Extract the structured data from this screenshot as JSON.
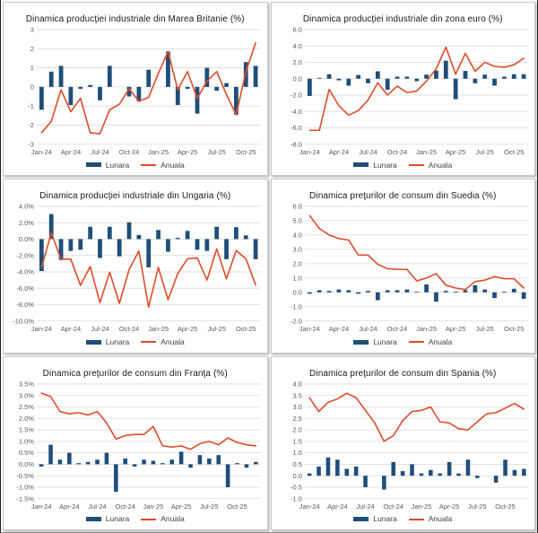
{
  "colors": {
    "bar": "#1f4e79",
    "line": "#df4b2a",
    "grid": "#d9d9d9",
    "tick_text": "#595959",
    "title_text": "#1a1a1a",
    "legend_text": "#404040",
    "panel_border": "#c9c9c9",
    "background": "#ffffff"
  },
  "legend": {
    "lunara": "Lunara",
    "anuala": "Anuala"
  },
  "chart_data": [
    {
      "type": "bar+line",
      "title": "Dinamica producţiei industriale din Marea Britanie (%)",
      "ylim": [
        -3,
        3
      ],
      "grid": true,
      "legend_position": "bottom",
      "months": [
        "Jan-24",
        "Feb-24",
        "Mar-24",
        "Apr-24",
        "May-24",
        "Jun-24",
        "Jul-24",
        "Aug-24",
        "Sep-24",
        "Oct-24",
        "Nov-24",
        "Dec-24",
        "Jan-25",
        "Feb-25",
        "Mar-25",
        "Apr-25",
        "May-25",
        "Jun-25",
        "Jul-25",
        "Aug-25",
        "Sep-25",
        "Oct-25",
        "Nov-25"
      ],
      "x_ticks": [
        {
          "i": 0,
          "label": "Jan-24"
        },
        {
          "i": 3,
          "label": "Apr-24"
        },
        {
          "i": 6,
          "label": "Jul-24"
        },
        {
          "i": 9,
          "label": "Oct-24"
        },
        {
          "i": 12,
          "label": "Jan-25"
        },
        {
          "i": 15,
          "label": "Apr-25"
        },
        {
          "i": 18,
          "label": "Jul-25"
        },
        {
          "i": 21,
          "label": "Oct-25"
        }
      ],
      "y_ticks": [
        {
          "v": 3,
          "label": "3"
        },
        {
          "v": 2,
          "label": "2"
        },
        {
          "v": 1,
          "label": "1"
        },
        {
          "v": 0,
          "label": "0"
        },
        {
          "v": -1,
          "label": "-1"
        },
        {
          "v": -2,
          "label": "-2"
        },
        {
          "v": -3,
          "label": "-3"
        }
      ],
      "series": [
        {
          "name": "Lunara",
          "type": "bar",
          "values": [
            -1.2,
            0.8,
            1.1,
            -0.95,
            -0.1,
            0.1,
            -0.7,
            1.1,
            0,
            -0.5,
            -0.75,
            0.9,
            0,
            1.85,
            -0.95,
            -0.1,
            -1.4,
            1.0,
            -0.2,
            0.2,
            -1.45,
            1.3,
            1.1
          ]
        },
        {
          "name": "Anuala",
          "type": "line",
          "values": [
            -2.4,
            -1.8,
            -0.15,
            -1.3,
            -0.6,
            -2.4,
            -2.45,
            -1.2,
            -0.9,
            -0.1,
            -0.75,
            -0.55,
            0.7,
            1.85,
            -0.15,
            0.8,
            -0.6,
            0.3,
            0.8,
            -0.4,
            -1.45,
            0.8,
            2.3
          ]
        }
      ]
    },
    {
      "type": "bar+line",
      "title": "Dinamica producţiei industriale din zona euro (%)",
      "ylim": [
        -8,
        6
      ],
      "grid": true,
      "legend_position": "bottom",
      "months": [
        "Jan-24",
        "Feb-24",
        "Mar-24",
        "Apr-24",
        "May-24",
        "Jun-24",
        "Jul-24",
        "Aug-24",
        "Sep-24",
        "Oct-24",
        "Nov-24",
        "Dec-24",
        "Jan-25",
        "Feb-25",
        "Mar-25",
        "Apr-25",
        "May-25",
        "Jun-25",
        "Jul-25",
        "Aug-25",
        "Sep-25",
        "Oct-25",
        "Nov-25"
      ],
      "x_ticks": [
        {
          "i": 0,
          "label": "Jan-24"
        },
        {
          "i": 3,
          "label": "Apr-24"
        },
        {
          "i": 6,
          "label": "Jul-24"
        },
        {
          "i": 9,
          "label": "Oct-24"
        },
        {
          "i": 12,
          "label": "Jan-25"
        },
        {
          "i": 15,
          "label": "Apr-25"
        },
        {
          "i": 18,
          "label": "Jul-25"
        },
        {
          "i": 21,
          "label": "Oct-25"
        }
      ],
      "y_ticks": [
        {
          "v": 6,
          "label": "6.0"
        },
        {
          "v": 4,
          "label": "4.0"
        },
        {
          "v": 2,
          "label": "2.0"
        },
        {
          "v": 0,
          "label": "0.0"
        },
        {
          "v": -2,
          "label": "-2.0"
        },
        {
          "v": -4,
          "label": "-4.0"
        },
        {
          "v": -6,
          "label": "-6.0"
        },
        {
          "v": -8,
          "label": "-8.0"
        }
      ],
      "series": [
        {
          "name": "Lunara",
          "type": "bar",
          "values": [
            -2.1,
            0.1,
            0.55,
            -0.2,
            -0.85,
            0.45,
            -0.55,
            0.9,
            -1.35,
            0.25,
            0.25,
            -0.3,
            0.5,
            1.0,
            2.2,
            -2.5,
            0.95,
            -0.55,
            0.5,
            -0.85,
            0.25,
            0.55,
            0.55
          ]
        },
        {
          "name": "Anuala",
          "type": "line",
          "values": [
            -6.3,
            -6.3,
            -1.3,
            -3.3,
            -4.45,
            -3.9,
            -2.6,
            -0.5,
            -2.0,
            -0.9,
            -1.7,
            -1.5,
            -0.3,
            1.2,
            3.85,
            0.55,
            3.1,
            0.9,
            2.0,
            1.5,
            1.4,
            1.7,
            2.5
          ]
        }
      ]
    },
    {
      "type": "bar+line",
      "title": "Dinamica producţiei industriale din Ungaria (%)",
      "ylim": [
        -10,
        4
      ],
      "grid": true,
      "legend_position": "bottom",
      "months": [
        "Jan-24",
        "Feb-24",
        "Mar-24",
        "Apr-24",
        "May-24",
        "Jun-24",
        "Jul-24",
        "Aug-24",
        "Sep-24",
        "Oct-24",
        "Nov-24",
        "Dec-24",
        "Jan-25",
        "Feb-25",
        "Mar-25",
        "Apr-25",
        "May-25",
        "Jun-25",
        "Jul-25",
        "Aug-25",
        "Sep-25",
        "Oct-25",
        "Nov-25"
      ],
      "x_ticks": [
        {
          "i": 0,
          "label": "Jan-24"
        },
        {
          "i": 3,
          "label": "Apr-24"
        },
        {
          "i": 6,
          "label": "Jul-24"
        },
        {
          "i": 9,
          "label": "Oct-24"
        },
        {
          "i": 12,
          "label": "Jan-25"
        },
        {
          "i": 15,
          "label": "Apr-25"
        },
        {
          "i": 18,
          "label": "Jul-25"
        },
        {
          "i": 21,
          "label": "Oct-25"
        }
      ],
      "y_ticks": [
        {
          "v": 4,
          "label": "4.0%"
        },
        {
          "v": 2,
          "label": "2.0%"
        },
        {
          "v": 0,
          "label": "0.0%"
        },
        {
          "v": -2,
          "label": "-2.0%"
        },
        {
          "v": -4,
          "label": "-4.0%"
        },
        {
          "v": -6,
          "label": "-6.0%"
        },
        {
          "v": -8,
          "label": "-8.0%"
        },
        {
          "v": -10,
          "label": "-10.0%"
        }
      ],
      "series": [
        {
          "name": "Lunara",
          "type": "bar",
          "values": [
            -3.9,
            3.05,
            -2.55,
            -1.45,
            -1.3,
            1.5,
            -2.3,
            1.5,
            -2.1,
            2.05,
            0.5,
            -3.45,
            1.1,
            -1.55,
            0.15,
            1.0,
            -1.3,
            -1.45,
            1.5,
            -2.45,
            1.45,
            0.45,
            -2.45
          ]
        },
        {
          "name": "Anuala",
          "type": "line",
          "values": [
            -3.45,
            0.75,
            -2.45,
            -2.45,
            -5.65,
            -3.35,
            -7.75,
            -4.05,
            -7.85,
            -3.7,
            -1.45,
            -8.3,
            -3.45,
            -7.4,
            -4.2,
            -2.4,
            -2.3,
            -5.0,
            -1.2,
            -4.85,
            -1.4,
            -2.4,
            -5.6
          ]
        }
      ]
    },
    {
      "type": "bar+line",
      "title": "Dinamica preţurilor de consum din Suedia (%)",
      "ylim": [
        -2,
        6
      ],
      "grid": true,
      "legend_position": "bottom",
      "months": [
        "Jan-24",
        "Feb-24",
        "Mar-24",
        "Apr-24",
        "May-24",
        "Jun-24",
        "Jul-24",
        "Aug-24",
        "Sep-24",
        "Oct-24",
        "Nov-24",
        "Dec-24",
        "Jan-25",
        "Feb-25",
        "Mar-25",
        "Apr-25",
        "May-25",
        "Jun-25",
        "Jul-25",
        "Aug-25",
        "Sep-25",
        "Oct-25",
        "Nov-25"
      ],
      "x_ticks": [
        {
          "i": 0,
          "label": "Jan-24"
        },
        {
          "i": 3,
          "label": "Apr-24"
        },
        {
          "i": 6,
          "label": "Jul-24"
        },
        {
          "i": 9,
          "label": "Oct-24"
        },
        {
          "i": 12,
          "label": "Jan-25"
        },
        {
          "i": 15,
          "label": "Apr-25"
        },
        {
          "i": 18,
          "label": "Jul-25"
        },
        {
          "i": 21,
          "label": "Oct-25"
        }
      ],
      "y_ticks": [
        {
          "v": 6,
          "label": "6.0"
        },
        {
          "v": 5,
          "label": "5.0"
        },
        {
          "v": 4,
          "label": "4.0"
        },
        {
          "v": 3,
          "label": "3.0"
        },
        {
          "v": 2,
          "label": "2.0"
        },
        {
          "v": 1,
          "label": "1.0"
        },
        {
          "v": 0,
          "label": "0.0"
        },
        {
          "v": -1,
          "label": "-1.0"
        },
        {
          "v": -2,
          "label": "-2.0"
        }
      ],
      "series": [
        {
          "name": "Lunara",
          "type": "bar",
          "values": [
            -0.1,
            0.15,
            0.1,
            0.2,
            0.15,
            -0.1,
            0.1,
            -0.55,
            0.15,
            0.15,
            0.2,
            0.05,
            0.55,
            -0.65,
            0.1,
            0.05,
            0.15,
            0.5,
            0.2,
            -0.4,
            0.05,
            0.25,
            -0.45
          ]
        },
        {
          "name": "Anuala",
          "type": "line",
          "values": [
            5.35,
            4.45,
            4.0,
            3.75,
            3.65,
            2.6,
            2.6,
            1.95,
            1.65,
            1.6,
            1.6,
            0.8,
            1.0,
            1.3,
            0.5,
            0.3,
            0.2,
            0.75,
            0.85,
            1.1,
            0.95,
            0.95,
            0.3
          ]
        }
      ]
    },
    {
      "type": "bar+line",
      "title": "Dinamica preţurilor de consum din Franţa (%)",
      "ylim": [
        -1.5,
        3.5
      ],
      "grid": true,
      "legend_position": "bottom",
      "months": [
        "Jan-24",
        "Feb-24",
        "Mar-24",
        "Apr-24",
        "May-24",
        "Jun-24",
        "Jul-24",
        "Aug-24",
        "Sep-24",
        "Oct-24",
        "Nov-24",
        "Dec-24",
        "Jan-25",
        "Feb-25",
        "Mar-25",
        "Apr-25",
        "May-25",
        "Jun-25",
        "Jul-25",
        "Aug-25",
        "Sep-25",
        "Oct-25",
        "Nov-25",
        "Dec-25"
      ],
      "x_ticks": [
        {
          "i": 0,
          "label": "Jan-24"
        },
        {
          "i": 3,
          "label": "Apr-24"
        },
        {
          "i": 6,
          "label": "Jul-24"
        },
        {
          "i": 9,
          "label": "Oct-24"
        },
        {
          "i": 12,
          "label": "Jan-25"
        },
        {
          "i": 15,
          "label": "Apr-25"
        },
        {
          "i": 18,
          "label": "Jul-25"
        },
        {
          "i": 21,
          "label": "Oct-25"
        }
      ],
      "y_ticks": [
        {
          "v": 3.5,
          "label": "3.5%"
        },
        {
          "v": 3,
          "label": "3.0%"
        },
        {
          "v": 2.5,
          "label": "2.5%"
        },
        {
          "v": 2,
          "label": "2.0%"
        },
        {
          "v": 1.5,
          "label": "1.5%"
        },
        {
          "v": 1,
          "label": "1.0%"
        },
        {
          "v": 0.5,
          "label": "0.5%"
        },
        {
          "v": 0,
          "label": "0.0%"
        },
        {
          "v": -0.5,
          "label": "-0.5%"
        },
        {
          "v": -1,
          "label": "-1.0%"
        },
        {
          "v": -1.5,
          "label": "-1.5%"
        }
      ],
      "series": [
        {
          "name": "Lunara",
          "type": "bar",
          "values": [
            -0.1,
            0.85,
            0.2,
            0.5,
            0.05,
            0.1,
            0.2,
            0.5,
            -1.2,
            0.25,
            -0.1,
            0.2,
            0.15,
            0.05,
            0.2,
            0.55,
            -0.15,
            0.4,
            0.25,
            0.4,
            -1.0,
            0.05,
            -0.15,
            0.1
          ]
        },
        {
          "name": "Anuala",
          "type": "line",
          "values": [
            3.1,
            2.95,
            2.3,
            2.2,
            2.25,
            2.15,
            2.3,
            1.8,
            1.1,
            1.25,
            1.3,
            1.3,
            1.65,
            0.8,
            0.75,
            0.8,
            0.65,
            0.9,
            1.0,
            0.85,
            1.15,
            0.95,
            0.85,
            0.8
          ]
        }
      ]
    },
    {
      "type": "bar+line",
      "title": "Dinamica preţurilor de consum din Spania (%)",
      "ylim": [
        -1,
        4
      ],
      "grid": true,
      "legend_position": "bottom",
      "months": [
        "Jan-24",
        "Feb-24",
        "Mar-24",
        "Apr-24",
        "May-24",
        "Jun-24",
        "Jul-24",
        "Aug-24",
        "Sep-24",
        "Oct-24",
        "Nov-24",
        "Dec-24",
        "Jan-25",
        "Feb-25",
        "Mar-25",
        "Apr-25",
        "May-25",
        "Jun-25",
        "Jul-25",
        "Aug-25",
        "Sep-25",
        "Oct-25",
        "Nov-25",
        "Dec-25"
      ],
      "x_ticks": [
        {
          "i": 0,
          "label": "Jan-24"
        },
        {
          "i": 3,
          "label": "Apr-24"
        },
        {
          "i": 6,
          "label": "Jul-24"
        },
        {
          "i": 9,
          "label": "Oct-24"
        },
        {
          "i": 12,
          "label": "Jan-25"
        },
        {
          "i": 15,
          "label": "Apr-25"
        },
        {
          "i": 18,
          "label": "Jul-25"
        },
        {
          "i": 21,
          "label": "Oct-25"
        }
      ],
      "y_ticks": [
        {
          "v": 4,
          "label": "4.0"
        },
        {
          "v": 3.5,
          "label": "3.5"
        },
        {
          "v": 3,
          "label": "3.0"
        },
        {
          "v": 2.5,
          "label": "2.5"
        },
        {
          "v": 2,
          "label": "2.0"
        },
        {
          "v": 1.5,
          "label": "1.5"
        },
        {
          "v": 1,
          "label": "1.0"
        },
        {
          "v": 0.5,
          "label": "0.5"
        },
        {
          "v": 0,
          "label": "0.0"
        },
        {
          "v": -0.5,
          "label": "-0.5"
        },
        {
          "v": -1,
          "label": "-1.0"
        }
      ],
      "series": [
        {
          "name": "Lunara",
          "type": "bar",
          "values": [
            0.1,
            0.4,
            0.8,
            0.7,
            0.3,
            0.4,
            -0.5,
            0.0,
            -0.6,
            0.6,
            0.2,
            0.5,
            0.1,
            0.25,
            0.1,
            0.6,
            0.1,
            0.7,
            -0.1,
            0.0,
            -0.3,
            0.7,
            0.25,
            0.3
          ]
        },
        {
          "name": "Anuala",
          "type": "line",
          "values": [
            3.4,
            2.8,
            3.2,
            3.35,
            3.6,
            3.4,
            2.85,
            2.3,
            1.5,
            1.75,
            2.4,
            2.8,
            2.85,
            3.0,
            2.35,
            2.3,
            2.05,
            2.0,
            2.35,
            2.7,
            2.75,
            2.95,
            3.15,
            2.9
          ]
        }
      ]
    }
  ]
}
